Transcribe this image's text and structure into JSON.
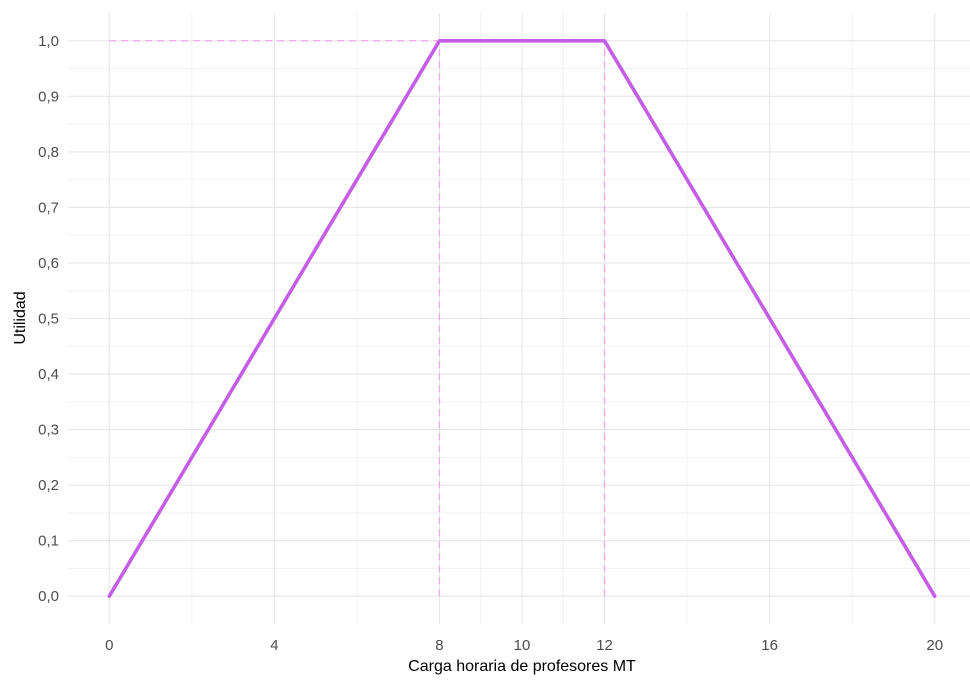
{
  "chart_data": {
    "type": "line",
    "xlabel": "Carga horaria de profesores MT",
    "ylabel": "Utilidad",
    "xlim": [
      -1,
      21
    ],
    "ylim": [
      -0.05,
      1.05
    ],
    "x_ticks": [
      0,
      4,
      8,
      10,
      12,
      16,
      20
    ],
    "x_tick_labels": [
      "0",
      "4",
      "8",
      "10",
      "12",
      "16",
      "20"
    ],
    "x_minor_gridlines": [
      2,
      6,
      9,
      11,
      14,
      18
    ],
    "y_ticks": [
      0,
      0.1,
      0.2,
      0.3,
      0.4,
      0.5,
      0.6,
      0.7,
      0.8,
      0.9,
      1.0
    ],
    "y_tick_labels": [
      "0,0",
      "0,1",
      "0,2",
      "0,3",
      "0,4",
      "0,5",
      "0,6",
      "0,7",
      "0,8",
      "0,9",
      "1,0"
    ],
    "grid": true,
    "series": [
      {
        "color": "#c45ee6",
        "x": [
          0,
          8,
          12,
          20
        ],
        "y": [
          0,
          1,
          1,
          0
        ]
      }
    ],
    "reference_lines": [
      {
        "x": [
          8,
          8
        ],
        "y": [
          0,
          1
        ],
        "color": "#f2a6ee",
        "style": "dashed"
      },
      {
        "x": [
          12,
          12
        ],
        "y": [
          0,
          1
        ],
        "color": "#f2a6ee",
        "style": "dashed"
      },
      {
        "x": [
          0,
          12
        ],
        "y": [
          1,
          1
        ],
        "color": "#f2a6ee",
        "style": "dashed"
      }
    ]
  }
}
